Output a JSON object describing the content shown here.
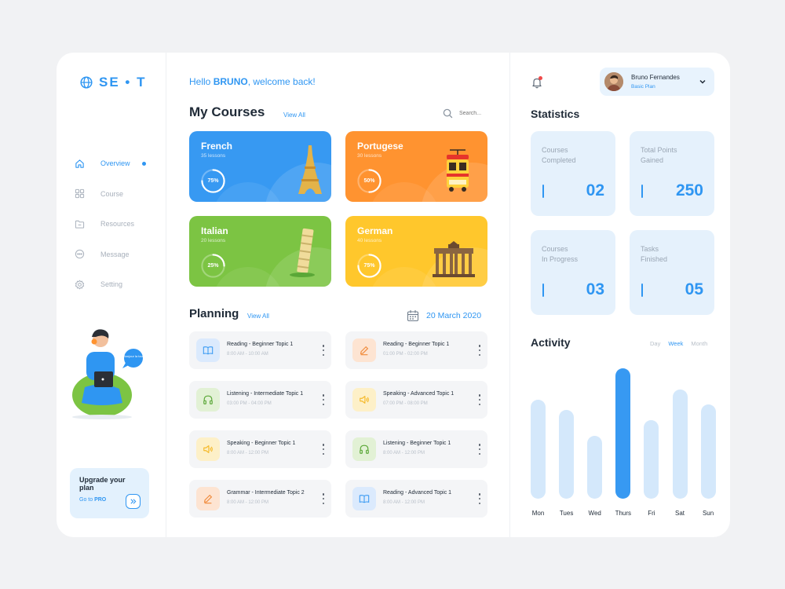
{
  "logo": {
    "text": "SE • T"
  },
  "sidebar": {
    "items": [
      {
        "label": "Overview",
        "icon": "home-icon"
      },
      {
        "label": "Course",
        "icon": "grid-icon"
      },
      {
        "label": "Resources",
        "icon": "folder-icon"
      },
      {
        "label": "Message",
        "icon": "message-icon"
      },
      {
        "label": "Setting",
        "icon": "gear-icon"
      }
    ],
    "active": "Overview",
    "illustration_bubble": "Bonjour la tout",
    "upgrade": {
      "title": "Upgrade your plan",
      "link_prefix": "Go to",
      "link_bold": "PRO"
    }
  },
  "header": {
    "greeting_prefix": "Hello",
    "user": "BRUNO",
    "greeting_suffix": ", welcome back!"
  },
  "courses_section": {
    "title": "My Courses",
    "view_all": "View All",
    "search_placeholder": "Search...",
    "courses": [
      {
        "name": "French",
        "lessons": "35 lessons",
        "progress": 75,
        "progress_label": "75%",
        "color": "#3799f2",
        "landmark": "eiffel-tower-icon"
      },
      {
        "name": "Portugese",
        "lessons": "30 lessons",
        "progress": 50,
        "progress_label": "50%",
        "color": "#ff9330",
        "landmark": "tram-icon"
      },
      {
        "name": "Italian",
        "lessons": "20 lessons",
        "progress": 25,
        "progress_label": "25%",
        "color": "#7cc443",
        "landmark": "pisa-tower-icon"
      },
      {
        "name": "German",
        "lessons": "40 lessons",
        "progress": 75,
        "progress_label": "75%",
        "color": "#ffc72c",
        "landmark": "brandenburg-gate-icon"
      }
    ]
  },
  "planning": {
    "title": "Planning",
    "view_all": "View All",
    "date": "20 March 2020",
    "tasks": [
      {
        "title": "Reading - Beginner Topic 1",
        "time": "8:00 AM - 10:00 AM",
        "icon": "book-icon",
        "kind": "blue"
      },
      {
        "title": "Reading - Beginner Topic 1",
        "time": "01:00 PM - 02:00 PM",
        "icon": "pencil-icon",
        "kind": "orange"
      },
      {
        "title": "Listening - Intermediate Topic 1",
        "time": "03:00 PM - 04:00 PM",
        "icon": "headphones-icon",
        "kind": "green"
      },
      {
        "title": "Speaking - Advanced Topic 1",
        "time": "07:00 PM - 08:00 PM",
        "icon": "speaker-icon",
        "kind": "yellow"
      },
      {
        "title": "Speaking - Beginner Topic 1",
        "time": "8:00 AM - 12:00 PM",
        "icon": "speaker-icon",
        "kind": "yellow"
      },
      {
        "title": "Listening - Beginner Topic 1",
        "time": "8:00 AM - 12:00 PM",
        "icon": "headphones-icon",
        "kind": "green"
      },
      {
        "title": "Grammar - Intermediate Topic 2",
        "time": "8:00 AM - 12:00 PM",
        "icon": "pencil-icon",
        "kind": "orange"
      },
      {
        "title": "Reading - Advanced Topic 1",
        "time": "8:00 AM - 12:00 PM",
        "icon": "book-icon",
        "kind": "blue"
      }
    ]
  },
  "profile": {
    "name": "Bruno Fernandes",
    "plan": "Basic Plan"
  },
  "statistics": {
    "title": "Statistics",
    "cards": [
      {
        "label": "Courses\nCompleted",
        "value": "02"
      },
      {
        "label": "Total Points\nGained",
        "value": "250"
      },
      {
        "label": "Courses\nIn Progress",
        "value": "03"
      },
      {
        "label": "Tasks\nFinished",
        "value": "05"
      }
    ]
  },
  "activity": {
    "title": "Activity",
    "periods": [
      "Day",
      "Week",
      "Month"
    ],
    "active_period": "Week",
    "days": [
      "Mon",
      "Tues",
      "Wed",
      "Thurs",
      "Fri",
      "Sat",
      "Sun"
    ],
    "levels": [
      0.76,
      0.68,
      0.48,
      1.0,
      0.6,
      0.84,
      0.72
    ],
    "active_day": "Thurs"
  },
  "colors": {
    "accent": "#2f96f2",
    "icon_bg": {
      "blue": "#dbeafd",
      "orange": "#fde4d2",
      "green": "#e2f1d5",
      "yellow": "#fdf0c8"
    },
    "icon_fg": {
      "blue": "#3799f2",
      "orange": "#f08a3a",
      "green": "#5aa737",
      "yellow": "#f5b92a"
    }
  }
}
